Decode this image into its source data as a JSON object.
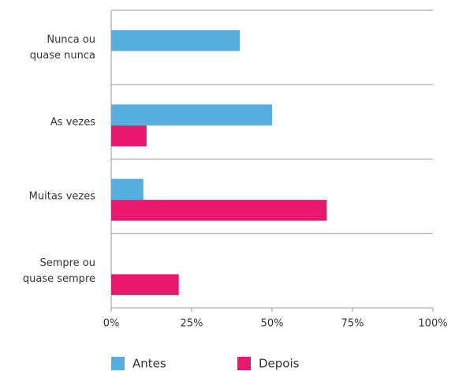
{
  "chart_data": {
    "type": "hbar",
    "categories": [
      [
        "Nunca ou",
        "quase nunca"
      ],
      [
        "As vezes"
      ],
      [
        "Muitas vezes"
      ],
      [
        "Sempre ou",
        "quase sempre"
      ]
    ],
    "series": [
      {
        "name": "Antes",
        "color": "#55ade0",
        "values": [
          40,
          50,
          10,
          0
        ]
      },
      {
        "name": "Depois",
        "color": "#e8186f",
        "values": [
          0,
          11,
          67,
          21
        ]
      }
    ],
    "xlim": [
      0,
      100
    ],
    "xticks": [
      {
        "value": 0,
        "label": "0%"
      },
      {
        "value": 25,
        "label": "25%"
      },
      {
        "value": 50,
        "label": "50%"
      },
      {
        "value": 75,
        "label": "75%"
      },
      {
        "value": 100,
        "label": "100%"
      }
    ],
    "legend": "bottom"
  }
}
